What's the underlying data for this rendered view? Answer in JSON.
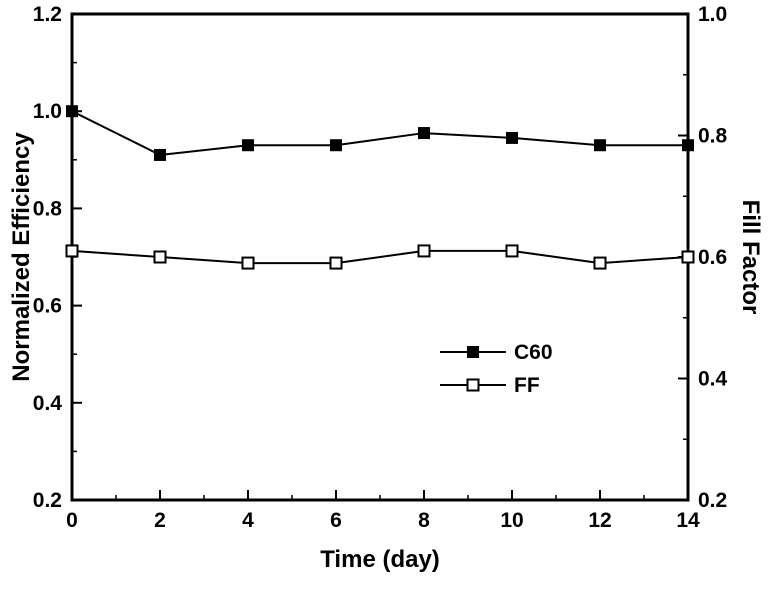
{
  "chart_data": {
    "type": "line",
    "title": "",
    "xlabel": "Time (day)",
    "ylabel_left": "Normalized Efficiency",
    "ylabel_right": "Fill Factor",
    "xlim": [
      0,
      14
    ],
    "x_major_ticks": [
      0,
      2,
      4,
      6,
      8,
      10,
      12,
      14
    ],
    "x_minor_step": 1,
    "ylim_left": [
      0.2,
      1.2
    ],
    "left_major_ticks": [
      0.2,
      0.4,
      0.6,
      0.8,
      1.0,
      1.2
    ],
    "left_minor_step": 0.1,
    "ylim_right": [
      0.2,
      1.0
    ],
    "right_major_ticks": [
      0.2,
      0.4,
      0.6,
      0.8,
      1.0
    ],
    "right_minor_step": 0.1,
    "grid": false,
    "x": [
      0,
      2,
      4,
      6,
      8,
      10,
      12,
      14
    ],
    "series": [
      {
        "name": "C60",
        "axis": "left",
        "marker": "filled-square",
        "values": [
          1.0,
          0.91,
          0.93,
          0.93,
          0.955,
          0.945,
          0.93,
          0.93
        ]
      },
      {
        "name": "FF",
        "axis": "right",
        "marker": "open-square",
        "values": [
          0.61,
          0.6,
          0.59,
          0.59,
          0.61,
          0.61,
          0.59,
          0.6
        ]
      }
    ],
    "legend": {
      "position": "inside-center-right",
      "entries": [
        "C60",
        "FF"
      ]
    },
    "colors": {
      "line": "#000000",
      "background": "#ffffff",
      "text": "#000000"
    }
  }
}
